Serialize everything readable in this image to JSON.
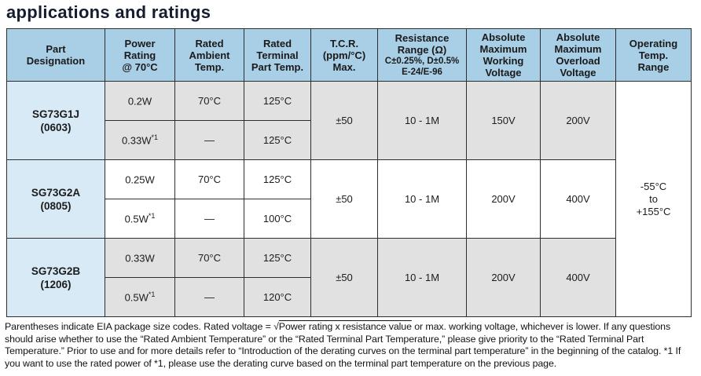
{
  "page": {
    "title": "applications and ratings"
  },
  "colors": {
    "header_bg": "#a9cfe7",
    "part_cell_bg": "#d7eaf6",
    "row_shade_gray": "#e1e1e1",
    "row_shade_white": "#ffffff",
    "border": "#2e2e2e",
    "title_color": "#161d2e"
  },
  "table": {
    "headers": {
      "part": [
        "Part",
        "Designation"
      ],
      "power": [
        "Power",
        "Rating",
        "@ 70°C"
      ],
      "ambient": [
        "Rated",
        "Ambient",
        "Temp."
      ],
      "terminal": [
        "Rated",
        "Terminal",
        "Part Temp."
      ],
      "tcr": [
        "T.C.R.",
        "(ppm/°C)",
        "Max."
      ],
      "resistance_main": [
        "Resistance",
        "Range (Ω)"
      ],
      "resistance_sub": [
        "C±0.25%, D±0.5%",
        "E-24/E-96"
      ],
      "working": [
        "Absolute",
        "Maximum",
        "Working",
        "Voltage"
      ],
      "overload": [
        "Absolute",
        "Maximum",
        "Overload",
        "Voltage"
      ],
      "operating": [
        "Operating",
        "Temp.",
        "Range"
      ]
    },
    "groups": [
      {
        "part": "SG73G1J",
        "package": "(0603)",
        "rows": [
          {
            "power": "0.2W",
            "power_note": "",
            "ambient": "70°C",
            "terminal": "125°C"
          },
          {
            "power": "0.33W",
            "power_note": "*1",
            "ambient": "—",
            "terminal": "125°C"
          }
        ],
        "tcr": "±50",
        "resistance_range": "10 - 1M",
        "max_working_voltage": "150V",
        "max_overload_voltage": "200V"
      },
      {
        "part": "SG73G2A",
        "package": "(0805)",
        "rows": [
          {
            "power": "0.25W",
            "power_note": "",
            "ambient": "70°C",
            "terminal": "125°C"
          },
          {
            "power": "0.5W",
            "power_note": "*1",
            "ambient": "—",
            "terminal": "100°C"
          }
        ],
        "tcr": "±50",
        "resistance_range": "10 - 1M",
        "max_working_voltage": "200V",
        "max_overload_voltage": "400V"
      },
      {
        "part": "SG73G2B",
        "package": "(1206)",
        "rows": [
          {
            "power": "0.33W",
            "power_note": "",
            "ambient": "70°C",
            "terminal": "125°C"
          },
          {
            "power": "0.5W",
            "power_note": "*1",
            "ambient": "—",
            "terminal": "120°C"
          }
        ],
        "tcr": "±50",
        "resistance_range": "10 - 1M",
        "max_working_voltage": "200V",
        "max_overload_voltage": "400V"
      }
    ],
    "operating_range": [
      "-55°C",
      "to",
      "+155°C"
    ]
  },
  "footnote": {
    "before_sqrt": "Parentheses indicate EIA package size codes. Rated voltage = ",
    "sqrt_symbol": "√",
    "sqrt_expression": "Power rating x resistance value",
    "after_sqrt": " or max. working voltage, whichever is lower. If any questions should arise whether to use the “Rated Ambient Temperature” or the “Rated Terminal Part Temperature,” please give priority to the “Rated Terminal Part Temperature.” Prior to use and for more details refer to “Introduction of the derating curves on the terminal part temperature” in the beginning of the catalog. *1 If you want to use the rated power of *1, please use the derating curve based on the terminal part temperature on the previous page."
  }
}
